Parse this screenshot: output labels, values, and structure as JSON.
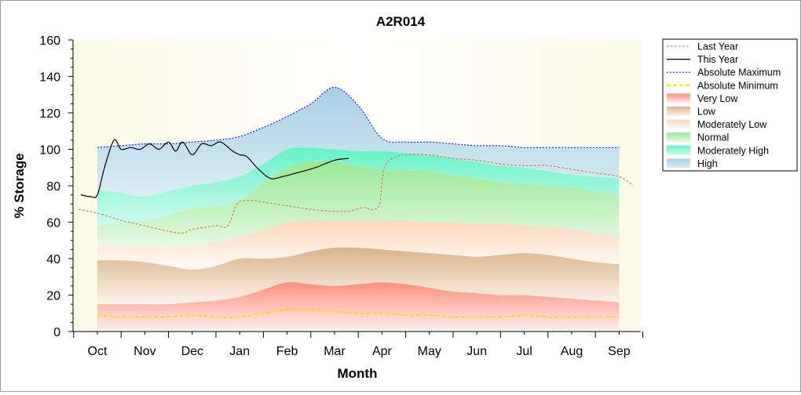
{
  "chart_data": {
    "type": "area",
    "title": "A2R014",
    "xlabel": "Month",
    "ylabel": "% Storage",
    "ylim": [
      0,
      160
    ],
    "yticks": [
      0,
      20,
      40,
      60,
      80,
      100,
      120,
      140,
      160
    ],
    "categories": [
      "Oct",
      "Nov",
      "Dec",
      "Jan",
      "Feb",
      "Mar",
      "Apr",
      "May",
      "Jun",
      "Jul",
      "Aug",
      "Sep"
    ],
    "grid": false,
    "legend_position": "right",
    "legend": [
      "Last Year",
      "This Year",
      "Absolute Maximum",
      "Absolute Minimum",
      "Very Low",
      "Low",
      "Moderately Low",
      "Normal",
      "Moderately High",
      "High"
    ],
    "bands": {
      "x": [
        0,
        0.5,
        1,
        1.5,
        2,
        2.5,
        3,
        3.5,
        4,
        4.5,
        5,
        5.5,
        6,
        6.5,
        7,
        7.5,
        8,
        8.5,
        9,
        9.5,
        10,
        10.5,
        11
      ],
      "very_low_top": [
        15,
        15,
        15,
        15,
        16,
        17,
        19,
        23,
        27,
        26,
        25,
        26,
        27,
        26,
        24,
        22,
        21,
        20,
        20,
        19,
        18,
        17,
        16
      ],
      "low_top": [
        39,
        39,
        38,
        36,
        34,
        36,
        40,
        40,
        41,
        44,
        46,
        46,
        45,
        44,
        43,
        42,
        41,
        42,
        43,
        42,
        40,
        38,
        37
      ],
      "moderately_low_top": [
        48,
        47,
        47,
        46,
        47,
        49,
        52,
        56,
        60,
        61,
        61,
        61,
        61,
        61,
        60,
        60,
        59,
        59,
        58,
        57,
        56,
        54,
        52
      ],
      "normal_top": [
        58,
        60,
        61,
        64,
        68,
        69,
        72,
        82,
        90,
        93,
        93,
        91,
        89,
        89,
        88,
        86,
        84,
        82,
        81,
        80,
        79,
        77,
        75
      ],
      "moderately_high_top": [
        78,
        76,
        74,
        77,
        80,
        82,
        85,
        92,
        100,
        101,
        100,
        99,
        99,
        98,
        97,
        95,
        93,
        91,
        90,
        88,
        86,
        85,
        84
      ],
      "high_top": [
        101,
        102,
        103,
        103,
        104,
        105,
        107,
        112,
        118,
        125,
        134,
        124,
        106,
        104,
        104,
        103,
        102,
        102,
        101,
        101,
        101,
        101,
        101
      ]
    },
    "series": [
      {
        "name": "Absolute Maximum",
        "color": "#1a1aff",
        "x": [
          0,
          0.5,
          1,
          1.5,
          2,
          2.5,
          3,
          3.5,
          4,
          4.5,
          5,
          5.5,
          6,
          6.5,
          7,
          7.5,
          8,
          8.5,
          9,
          9.5,
          10,
          10.5,
          11
        ],
        "values": [
          101,
          102,
          103,
          103,
          104,
          105,
          107,
          112,
          118,
          125,
          134,
          124,
          106,
          104,
          104,
          103,
          102,
          102,
          101,
          101,
          101,
          101,
          101
        ]
      },
      {
        "name": "Absolute Minimum",
        "color": "#e6e600",
        "x": [
          0,
          0.5,
          1,
          1.5,
          2,
          2.5,
          3,
          3.5,
          4,
          4.5,
          5,
          5.5,
          6,
          6.5,
          7,
          7.5,
          8,
          8.5,
          9,
          9.5,
          10,
          10.5,
          11
        ],
        "values": [
          9,
          8,
          8,
          8,
          9,
          8,
          8,
          10,
          12,
          12,
          11,
          10,
          10,
          9,
          9,
          8,
          8,
          8,
          9,
          8,
          8,
          8,
          8
        ]
      },
      {
        "name": "Last Year",
        "color": "#c8824f",
        "x": [
          -0.4,
          0,
          0.5,
          1,
          1.5,
          1.8,
          2,
          2.5,
          2.75,
          2.95,
          3.2,
          3.5,
          4,
          4.5,
          5,
          5.3,
          5.6,
          5.8,
          5.95,
          6.05,
          6.3,
          6.6,
          7,
          7.5,
          8,
          8.5,
          9,
          9.5,
          10,
          10.5,
          11,
          11.3
        ],
        "values": [
          67,
          65,
          61,
          58,
          55,
          54,
          56,
          58,
          58,
          70,
          72,
          71,
          69,
          67,
          66,
          66,
          68,
          67,
          70,
          90,
          96,
          97,
          97,
          95,
          94,
          92,
          91,
          91,
          89,
          87,
          85,
          80
        ]
      },
      {
        "name": "This Year",
        "color": "#000000",
        "x": [
          -0.35,
          -0.15,
          0,
          0.15,
          0.35,
          0.5,
          0.7,
          0.9,
          1.1,
          1.3,
          1.5,
          1.65,
          1.8,
          2.0,
          2.2,
          2.4,
          2.6,
          2.85,
          3.0,
          3.15,
          3.4,
          3.65,
          3.9,
          4.2,
          4.6,
          5.0,
          5.3
        ],
        "values": [
          75,
          74,
          75,
          90,
          105,
          100,
          101,
          100,
          103,
          100,
          104,
          99,
          104,
          97,
          103,
          102,
          104,
          99,
          97,
          96,
          89,
          84,
          85,
          87,
          90,
          94,
          95
        ]
      }
    ]
  }
}
